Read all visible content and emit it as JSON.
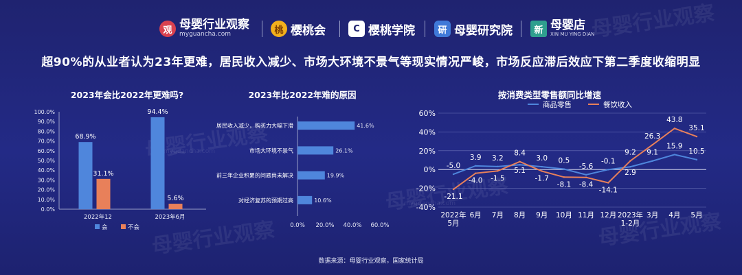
{
  "header": {
    "logos": [
      {
        "badge": "观",
        "name": "母婴行业观察",
        "sub": "myguancha.com",
        "badge_color": "#d9414f"
      },
      {
        "badge": "桃",
        "name": "樱桃会",
        "sub": "",
        "badge_color": "#f3b01c"
      },
      {
        "badge": "C",
        "name": "樱桃学院",
        "sub": "",
        "badge_color": "#ffffff"
      },
      {
        "badge": "研",
        "name": "母婴研究院",
        "sub": "",
        "badge_color": "#3f79d8"
      },
      {
        "badge": "新",
        "name": "母婴店",
        "sub": "XIN MU YING DIAN",
        "badge_color": "#2f9f8f"
      }
    ]
  },
  "headline": "超90%的从业者认为23年更难，居民收入减少、市场大环境不景气等现实情况严峻，市场反应滞后效应下第二季度收缩明显",
  "watermark": {
    "text": "母婴行业观察",
    "sub": "myguancha.com"
  },
  "colors": {
    "blue": "#4f86dc",
    "orange": "#e8805a",
    "grid": "#6b72b8"
  },
  "chart_data": [
    {
      "type": "bar",
      "title": "2023年会比2022年更难吗?",
      "categories": [
        "2022年12",
        "2023年6月"
      ],
      "series": [
        {
          "name": "会",
          "values": [
            68.9,
            94.4
          ],
          "color": "#4f86dc"
        },
        {
          "name": "不会",
          "values": [
            31.1,
            5.6
          ],
          "color": "#e8805a"
        }
      ],
      "ylim": [
        0,
        100
      ],
      "yticks": [
        "0.0%",
        "10.0%",
        "20.0%",
        "30.0%",
        "40.0%",
        "50.0%",
        "60.0%",
        "70.0%",
        "80.0%",
        "90.0%",
        "100.0%"
      ],
      "value_labels": [
        "68.9%",
        "94.4%",
        "31.1%",
        "5.6%"
      ],
      "legend": "bottom"
    },
    {
      "type": "bar",
      "orientation": "horizontal",
      "title": "2023年比2022年难的原因",
      "categories": [
        "居民收入减少，购买力大幅下滑",
        "市场大环境不景气",
        "前三年企业积累的问题尚未解决",
        "对经济复苏的预期过高"
      ],
      "values": [
        41.6,
        26.1,
        19.9,
        10.6
      ],
      "value_labels": [
        "41.6%",
        "26.1%",
        "19.9%",
        "10.6%"
      ],
      "xlim": [
        0,
        60
      ],
      "xticks": [
        "0.0%",
        "20.0%",
        "40.0%",
        "60.0%"
      ],
      "color": "#4f86dc"
    },
    {
      "type": "line",
      "title": "按消费类型零售额同比增速",
      "categories": [
        "2022年\n5月",
        "6月",
        "7月",
        "8月",
        "9月",
        "10月",
        "11月",
        "12月",
        "2023年\n1-2月",
        "3月",
        "4月",
        "5月"
      ],
      "series": [
        {
          "name": "商品零售",
          "values": [
            -5.0,
            3.9,
            3.2,
            5.1,
            3.0,
            0.5,
            -5.6,
            -0.1,
            2.9,
            9.1,
            15.9,
            10.5
          ],
          "color": "#4f86dc"
        },
        {
          "name": "餐饮收入",
          "values": [
            -21.1,
            -4.0,
            -1.5,
            8.4,
            -1.7,
            -8.1,
            -8.4,
            -14.1,
            9.2,
            26.3,
            43.8,
            35.1
          ],
          "color": "#e8805a"
        }
      ],
      "ylim": [
        -40,
        60
      ],
      "yticks": [
        "-40%",
        "-20%",
        "0%",
        "20%",
        "40%",
        "60%"
      ],
      "legend": "top"
    }
  ],
  "source": "数据来源：母婴行业观察，国家统计局"
}
